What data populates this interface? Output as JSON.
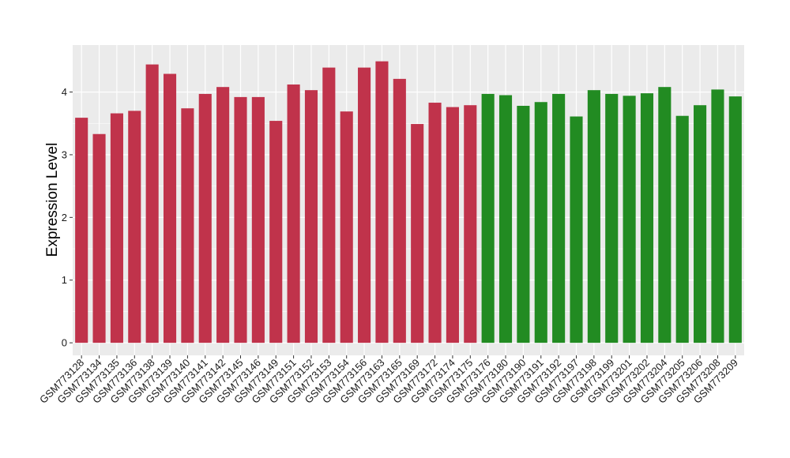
{
  "chart_data": {
    "type": "bar",
    "title": "",
    "xlabel": "",
    "ylabel": "Expression Level",
    "ylim": [
      -0.2,
      4.75
    ],
    "yticks": [
      0,
      1,
      2,
      3,
      4
    ],
    "grid": true,
    "legend": "none",
    "categories": [
      "GSM773128",
      "GSM773134",
      "GSM773135",
      "GSM773136",
      "GSM773138",
      "GSM773139",
      "GSM773140",
      "GSM773141",
      "GSM773142",
      "GSM773145",
      "GSM773146",
      "GSM773149",
      "GSM773151",
      "GSM773152",
      "GSM773153",
      "GSM773154",
      "GSM773156",
      "GSM773163",
      "GSM773165",
      "GSM773169",
      "GSM773172",
      "GSM773174",
      "GSM773175",
      "GSM773176",
      "GSM773180",
      "GSM773190",
      "GSM773191",
      "GSM773192",
      "GSM773197",
      "GSM773198",
      "GSM773199",
      "GSM773201",
      "GSM773202",
      "GSM773204",
      "GSM773205",
      "GSM773206",
      "GSM773208",
      "GSM773209"
    ],
    "values": [
      3.59,
      3.33,
      3.66,
      3.7,
      4.44,
      4.29,
      3.74,
      3.97,
      4.08,
      3.92,
      3.92,
      3.54,
      4.12,
      4.03,
      4.39,
      3.69,
      4.39,
      4.49,
      4.21,
      3.49,
      3.83,
      3.76,
      3.79,
      3.97,
      3.95,
      3.78,
      3.84,
      3.97,
      3.61,
      4.03,
      3.97,
      3.94,
      3.98,
      4.08,
      3.62,
      3.79,
      4.04,
      3.93
    ],
    "group_sizes": [
      23,
      15
    ],
    "colors": [
      "#c0334b",
      "#228b22"
    ],
    "panel_background": "#ebebeb",
    "grid_color": "#ffffff"
  }
}
